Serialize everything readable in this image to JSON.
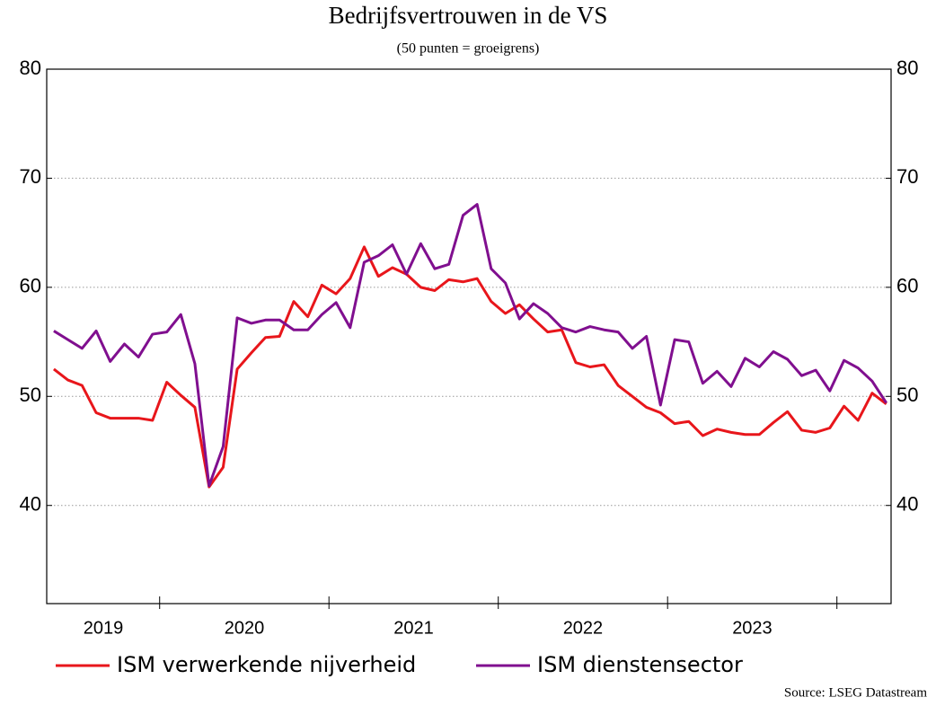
{
  "chart_data": {
    "type": "line",
    "title": "Bedrijfsvertrouwen in de VS",
    "subtitle": "(50 punten = groeigrens)",
    "source": "Source: LSEG Datastream",
    "x": [
      2019.375,
      2019.458,
      2019.542,
      2019.625,
      2019.708,
      2019.792,
      2019.875,
      2019.958,
      2020.042,
      2020.125,
      2020.208,
      2020.292,
      2020.375,
      2020.458,
      2020.542,
      2020.625,
      2020.708,
      2020.792,
      2020.875,
      2020.958,
      2021.042,
      2021.125,
      2021.208,
      2021.292,
      2021.375,
      2021.458,
      2021.542,
      2021.625,
      2021.708,
      2021.792,
      2021.875,
      2021.958,
      2022.042,
      2022.125,
      2022.208,
      2022.292,
      2022.375,
      2022.458,
      2022.542,
      2022.625,
      2022.708,
      2022.792,
      2022.875,
      2022.958,
      2023.042,
      2023.125,
      2023.208,
      2023.292,
      2023.375,
      2023.458,
      2023.542,
      2023.625,
      2023.708,
      2023.792,
      2023.875,
      2023.958,
      2024.042,
      2024.125,
      2024.208,
      2024.292
    ],
    "series": [
      {
        "name": "ISM verwerkende nijverheid",
        "color": "#e8161b",
        "values": [
          52.5,
          51.5,
          51.0,
          48.5,
          48.0,
          48.0,
          48.0,
          47.8,
          51.3,
          50.1,
          49.0,
          41.7,
          43.5,
          52.5,
          54.0,
          55.4,
          55.5,
          58.7,
          57.3,
          60.2,
          59.4,
          60.8,
          63.7,
          61.0,
          61.8,
          61.2,
          60.0,
          59.7,
          60.7,
          60.5,
          60.8,
          58.7,
          57.6,
          58.4,
          57.1,
          55.9,
          56.1,
          53.1,
          52.7,
          52.9,
          51.0,
          50.0,
          49.0,
          48.5,
          47.5,
          47.7,
          46.4,
          47.0,
          46.7,
          46.5,
          46.5,
          47.6,
          48.6,
          46.9,
          46.7,
          47.1,
          49.1,
          47.8,
          50.3,
          49.3
        ]
      },
      {
        "name": "ISM dienstensector",
        "color": "#800f8f",
        "values": [
          56.0,
          55.2,
          54.4,
          56.0,
          53.2,
          54.8,
          53.6,
          55.7,
          55.9,
          57.5,
          53.0,
          41.8,
          45.4,
          57.2,
          56.7,
          57.0,
          57.0,
          56.1,
          56.1,
          57.5,
          58.6,
          56.3,
          62.3,
          62.9,
          63.9,
          61.2,
          64.0,
          61.7,
          62.1,
          66.6,
          67.6,
          61.7,
          60.4,
          57.1,
          58.5,
          57.6,
          56.3,
          55.9,
          56.4,
          56.1,
          55.9,
          54.4,
          55.5,
          49.2,
          55.2,
          55.0,
          51.2,
          52.3,
          50.9,
          53.5,
          52.7,
          54.1,
          53.4,
          51.9,
          52.4,
          50.5,
          53.3,
          52.6,
          51.4,
          49.4
        ]
      }
    ],
    "xlim": [
      2019.333,
      2024.32
    ],
    "xticks": [
      2020,
      2021,
      2022,
      2023,
      2024
    ],
    "xlabels": [
      {
        "value": 2019.667,
        "label": "2019"
      },
      {
        "value": 2020.5,
        "label": "2020"
      },
      {
        "value": 2021.5,
        "label": "2021"
      },
      {
        "value": 2022.5,
        "label": "2022"
      },
      {
        "value": 2023.5,
        "label": "2023"
      }
    ],
    "ylim": [
      31,
      80
    ],
    "yticks": [
      40,
      50,
      60,
      70,
      80
    ],
    "grid": true
  }
}
